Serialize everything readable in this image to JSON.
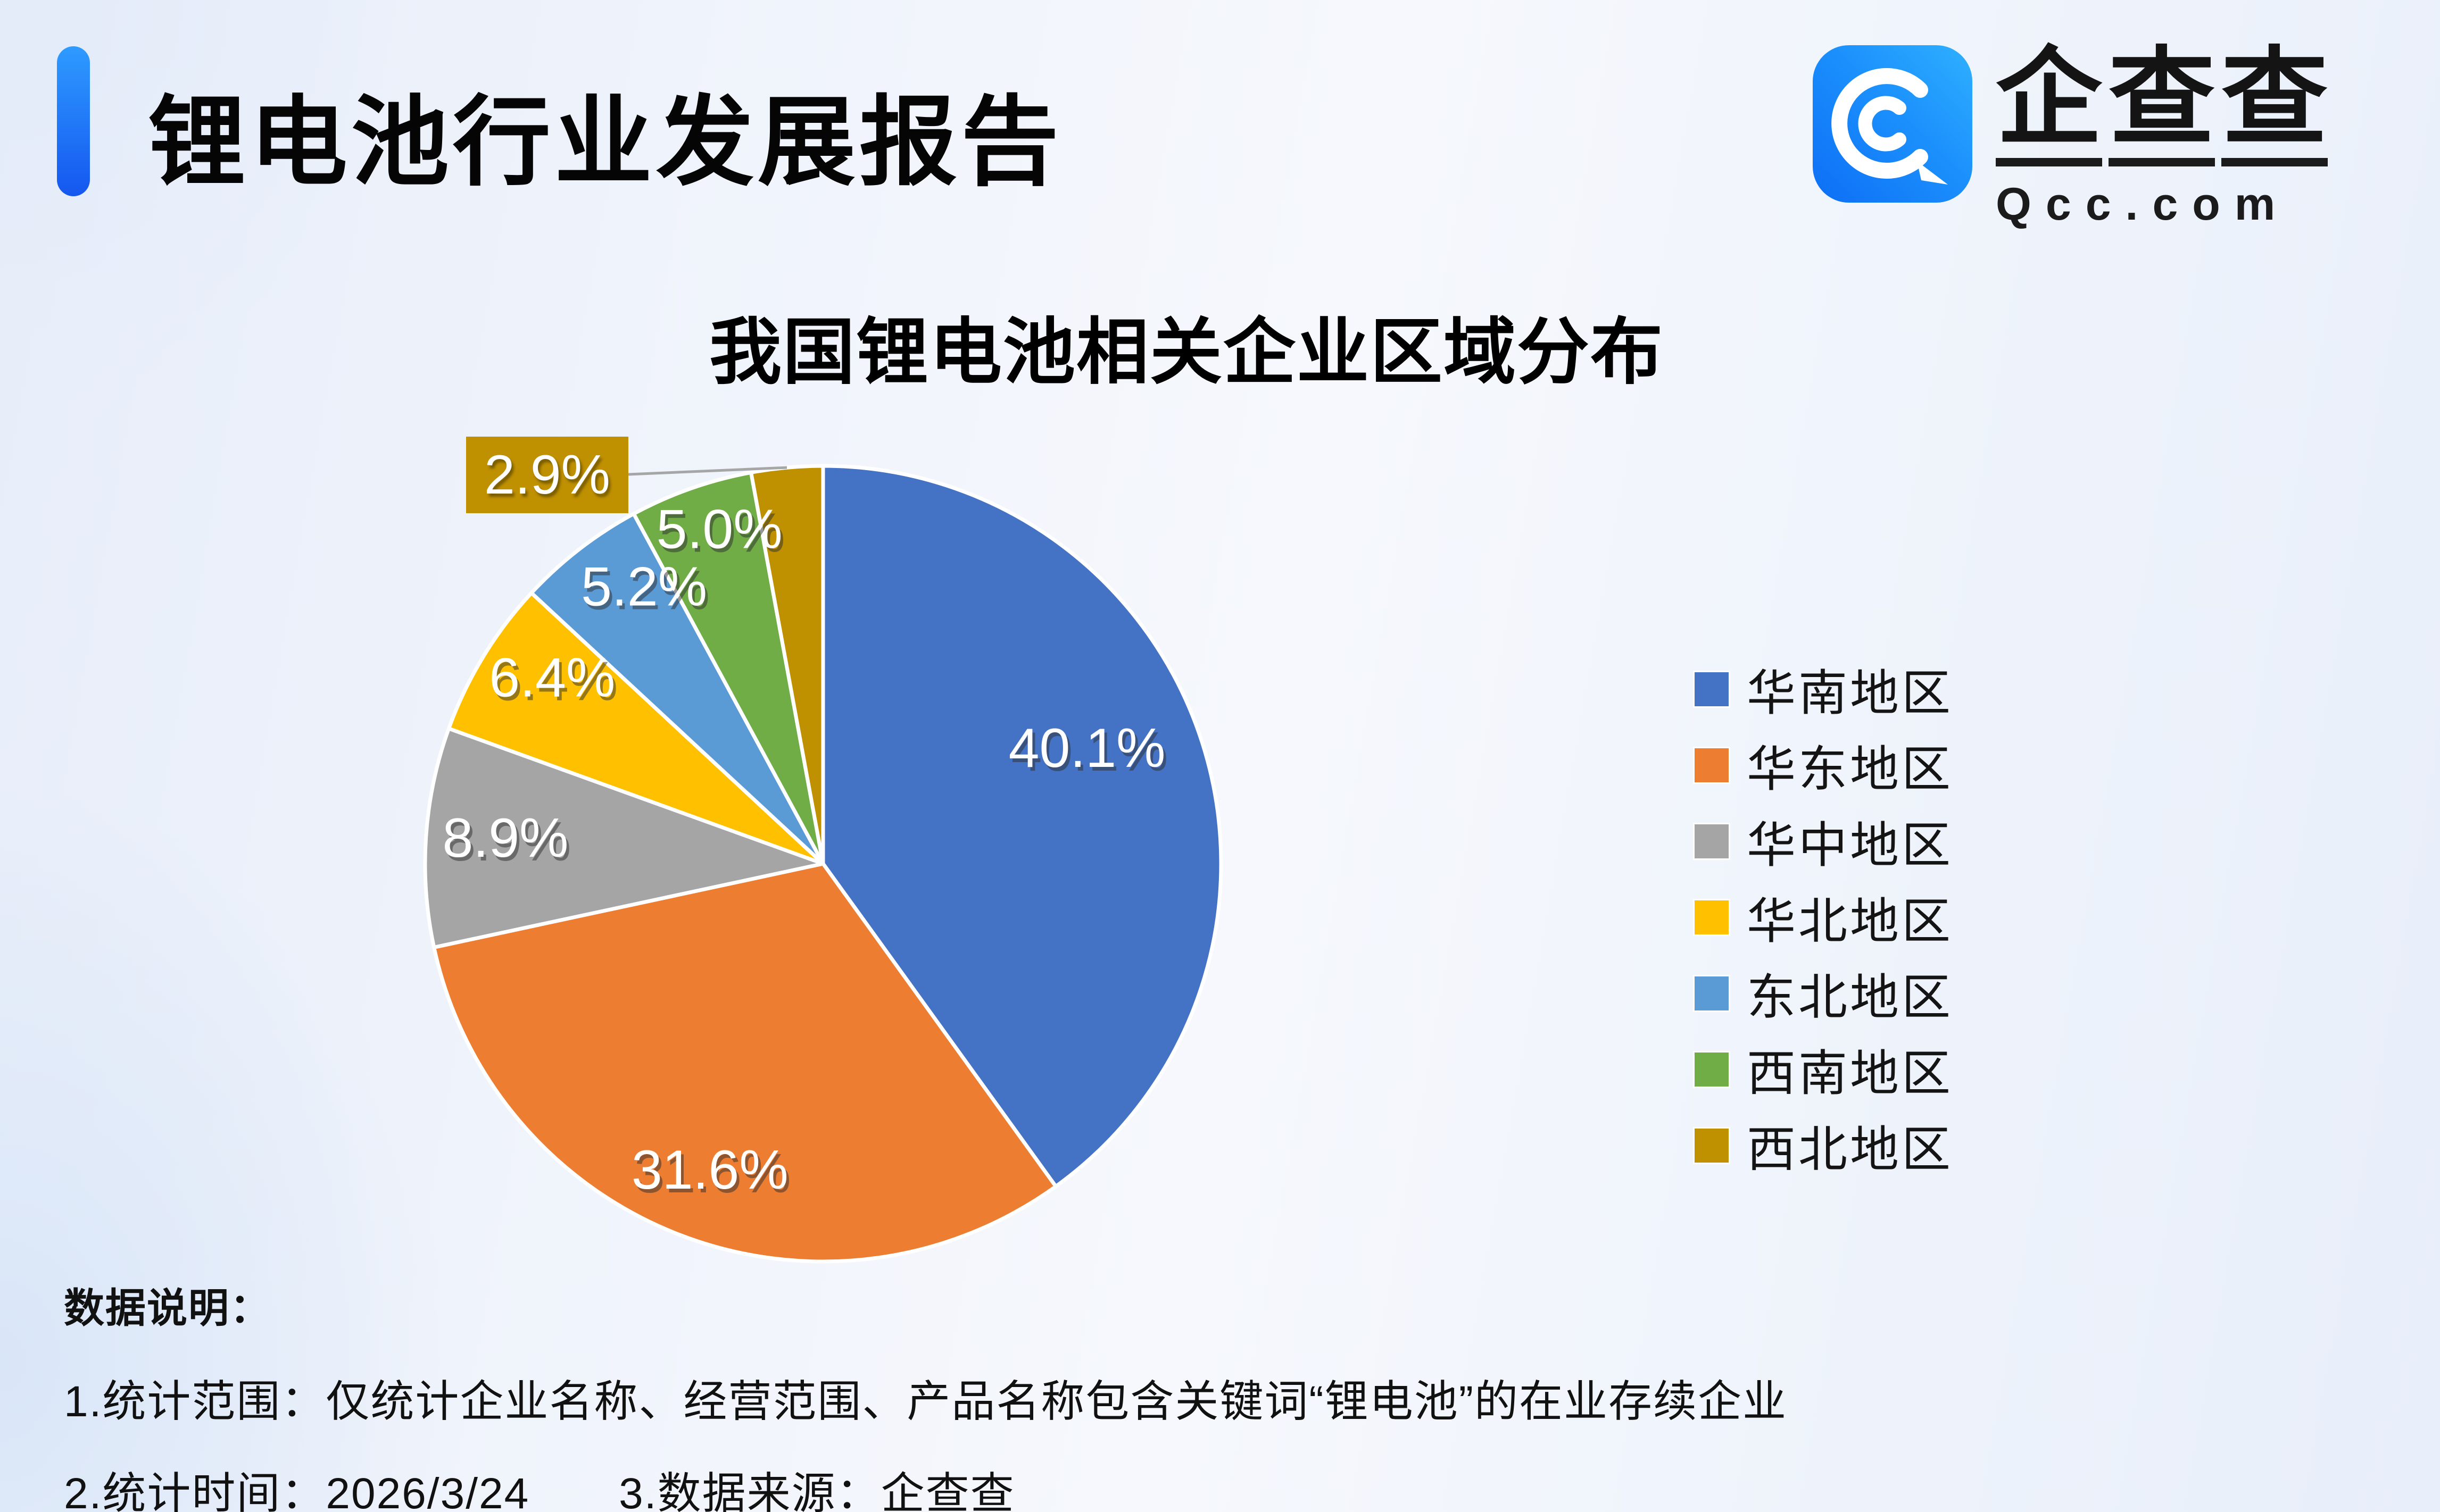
{
  "page": {
    "title": "锂电池行业发展报告"
  },
  "logo": {
    "name": "企查查",
    "domain": "Qcc.com"
  },
  "chart_data": {
    "type": "pie",
    "title": "我国锂电池相关企业区域分布",
    "categories": [
      "华南地区",
      "华东地区",
      "华中地区",
      "华北地区",
      "东北地区",
      "西南地区",
      "西北地区"
    ],
    "values": [
      40.1,
      31.6,
      8.9,
      6.4,
      5.2,
      5.0,
      2.9
    ],
    "labels": [
      "40.1%",
      "31.6%",
      "8.9%",
      "6.4%",
      "5.2%",
      "5.0%",
      "2.9%"
    ],
    "colors": [
      "#4472C4",
      "#ED7D31",
      "#A5A5A5",
      "#FFC000",
      "#5B9BD5",
      "#70AD47",
      "#BF9000"
    ],
    "legend_position": "right",
    "start_angle_deg": -90,
    "direction": "clockwise",
    "label_style": "white labels inside slices; smallest slice uses external gold callout with gray leader line"
  },
  "footnote": {
    "heading": "数据说明：",
    "line1": "1.统计范围：仅统计企业名称、经营范围、产品名称包含关键词“锂电池”的在业存续企业",
    "line2": "2.统计时间：2026/3/24　　3.数据来源：企查查"
  },
  "colors": {
    "accent_blue": "#1557ef",
    "logo_blue_light": "#2e9bff",
    "logo_blue_dark": "#0d6ef5",
    "callout_bg": "#BF9000",
    "leader_line": "#A6A6A6",
    "label_text": "#FFFFFF",
    "title_text": "#050505"
  }
}
